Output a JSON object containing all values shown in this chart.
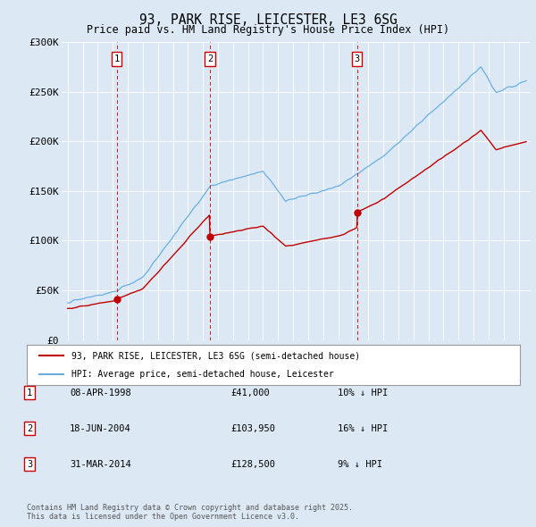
{
  "title": "93, PARK RISE, LEICESTER, LE3 6SG",
  "subtitle": "Price paid vs. HM Land Registry's House Price Index (HPI)",
  "background_color": "#dce9f5",
  "ylim": [
    0,
    300000
  ],
  "yticks": [
    0,
    50000,
    100000,
    150000,
    200000,
    250000,
    300000
  ],
  "ytick_labels": [
    "£0",
    "£50K",
    "£100K",
    "£150K",
    "£200K",
    "£250K",
    "£300K"
  ],
  "sale_dates_num": [
    1998.27,
    2004.46,
    2014.25
  ],
  "sale_prices": [
    41000,
    103950,
    128500
  ],
  "sale_labels": [
    "1",
    "2",
    "3"
  ],
  "sale_info": [
    [
      "1",
      "08-APR-1998",
      "£41,000",
      "10% ↓ HPI"
    ],
    [
      "2",
      "18-JUN-2004",
      "£103,950",
      "16% ↓ HPI"
    ],
    [
      "3",
      "31-MAR-2014",
      "£128,500",
      "9% ↓ HPI"
    ]
  ],
  "legend_entries": [
    "93, PARK RISE, LEICESTER, LE3 6SG (semi-detached house)",
    "HPI: Average price, semi-detached house, Leicester"
  ],
  "footer_text": "Contains HM Land Registry data © Crown copyright and database right 2025.\nThis data is licensed under the Open Government Licence v3.0.",
  "hpi_color": "#6aaee0",
  "price_color": "#c00000",
  "vline_color": "#cc0000",
  "box_color": "#cc0000"
}
